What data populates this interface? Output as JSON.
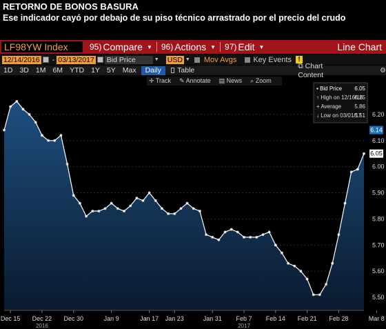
{
  "headline": {
    "title": "RETORNO DE BONOS BASURA",
    "subtitle": "Ese indicador cayó por debajo de su piso técnico arrastrado por el precio del crudo"
  },
  "toolbar": {
    "ticker": "LF98YW Index",
    "compare": {
      "num": "95)",
      "label": "Compare"
    },
    "actions": {
      "num": "96)",
      "label": "Actions"
    },
    "edit": {
      "num": "97)",
      "label": "Edit"
    },
    "chart_type": "Line Chart"
  },
  "params": {
    "start_date": "12/14/2016",
    "end_date": "03/13/2017",
    "field": "Bid Price",
    "currency": "USD",
    "mov_avgs": "Mov Avgs",
    "key_events": "Key Events"
  },
  "periods": [
    "1D",
    "3D",
    "1M",
    "6M",
    "YTD",
    "1Y",
    "5Y",
    "Max"
  ],
  "frequency": "Daily",
  "table_label": "Table",
  "chart_content_label": "Chart Content",
  "tools": [
    "Track",
    "Annotate",
    "News",
    "Zoom"
  ],
  "legend": {
    "bid_price": {
      "label": "Bid Price",
      "value": "6.05"
    },
    "high": {
      "label": "High on 12/16/16",
      "value": "6.25"
    },
    "average": {
      "label": "Average",
      "value": "5.86"
    },
    "low": {
      "label": "Low on 03/01/17",
      "value": "5.51"
    }
  },
  "current_marker": "6.14",
  "last_marker": "6.05",
  "colors": {
    "area_top": "#1e4f7f",
    "area_bottom": "#0a1a2e",
    "line": "#ffffff",
    "accent_bar": "#a0141a",
    "orange": "#f29b3a"
  },
  "chart_data": {
    "type": "area",
    "ylim": [
      5.45,
      6.3
    ],
    "yticks": [
      "6.20",
      "6.10",
      "6.00",
      "5.90",
      "5.80",
      "5.70",
      "5.60",
      "5.50"
    ],
    "ytick_values": [
      6.2,
      6.1,
      6.0,
      5.9,
      5.8,
      5.7,
      5.6,
      5.5
    ],
    "xticks": [
      "Dec 15",
      "Dec 22",
      "Dec 30",
      "Jan 9",
      "Jan 17",
      "Jan 23",
      "Jan 31",
      "Feb 7",
      "Feb 14",
      "Feb 21",
      "Feb 28",
      "Mar 8"
    ],
    "xtick_index": [
      1,
      6,
      11,
      17,
      23,
      27,
      33,
      38,
      43,
      48,
      53,
      59
    ],
    "year_labels": [
      "2016",
      "2017"
    ],
    "year_label_index": [
      6,
      38
    ],
    "values": [
      6.14,
      6.23,
      6.25,
      6.22,
      6.2,
      6.17,
      6.12,
      6.1,
      6.1,
      6.12,
      6.01,
      5.89,
      5.86,
      5.81,
      5.83,
      5.83,
      5.84,
      5.86,
      5.84,
      5.83,
      5.85,
      5.88,
      5.87,
      5.9,
      5.87,
      5.84,
      5.82,
      5.82,
      5.84,
      5.86,
      5.84,
      5.83,
      5.74,
      5.73,
      5.72,
      5.75,
      5.76,
      5.75,
      5.73,
      5.73,
      5.73,
      5.74,
      5.75,
      5.7,
      5.67,
      5.63,
      5.62,
      5.6,
      5.57,
      5.51,
      5.51,
      5.55,
      5.63,
      5.74,
      5.86,
      5.98,
      5.99,
      6.05
    ]
  }
}
